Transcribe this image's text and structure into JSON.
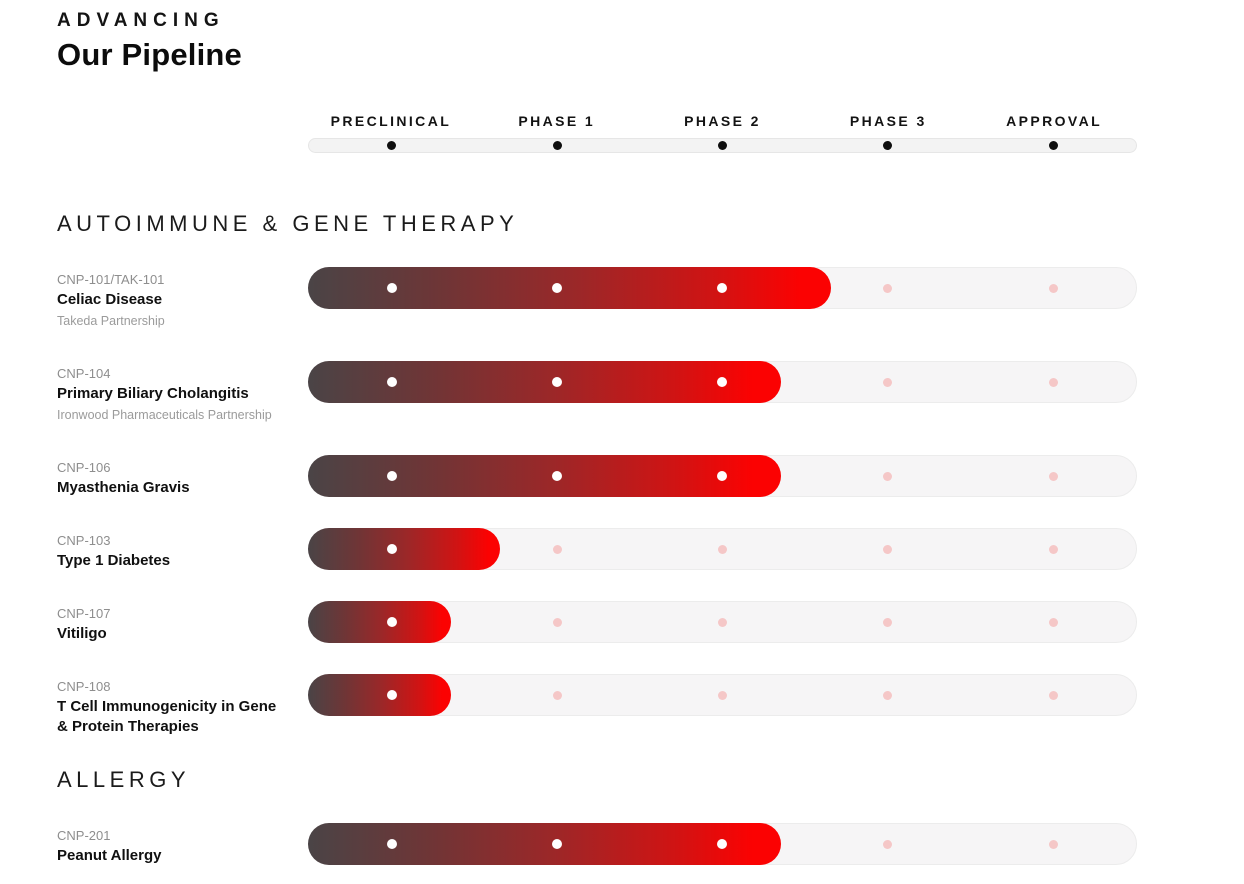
{
  "header": {
    "kicker": "ADVANCING",
    "title": "Our Pipeline"
  },
  "phases": [
    "PRECLINICAL",
    "PHASE 1",
    "PHASE 2",
    "PHASE 3",
    "APPROVAL"
  ],
  "colors": {
    "bar_gradient_start": "#4a4446",
    "bar_gradient_mid": "#9c2728",
    "bar_gradient_end": "#fb0202",
    "track_background": "#f6f5f6",
    "track_border": "#ececec",
    "axis_dot": "#0e0e0e",
    "reached_dot": "#ffffff",
    "pending_dot": "#f5c7c7"
  },
  "sections": [
    {
      "name": "AUTOIMMUNE & GENE THERAPY",
      "programs": [
        {
          "code": "CNP-101/TAK-101",
          "title": "Celiac Disease",
          "partner": "Takeda Partnership",
          "progress_pct": 63,
          "phases_reached": 3,
          "stage": "Phase 2"
        },
        {
          "code": "CNP-104",
          "title": "Primary Biliary Cholangitis",
          "partner": "Ironwood Pharmaceuticals Partnership",
          "progress_pct": 57,
          "phases_reached": 3,
          "stage": "Phase 2"
        },
        {
          "code": "CNP-106",
          "title": "Myasthenia Gravis",
          "partner": "",
          "progress_pct": 57,
          "phases_reached": 3,
          "stage": "Phase 2"
        },
        {
          "code": "CNP-103",
          "title": "Type 1 Diabetes",
          "partner": "",
          "progress_pct": 23,
          "phases_reached": 1,
          "stage": "Preclinical"
        },
        {
          "code": "CNP-107",
          "title": "Vitiligo",
          "partner": "",
          "progress_pct": 17,
          "phases_reached": 1,
          "stage": "Preclinical"
        },
        {
          "code": "CNP-108",
          "title": "T Cell Immunogenicity in Gene & Protein Therapies",
          "partner": "",
          "progress_pct": 17,
          "phases_reached": 1,
          "stage": "Preclinical"
        }
      ]
    },
    {
      "name": "ALLERGY",
      "programs": [
        {
          "code": "CNP-201",
          "title": "Peanut Allergy",
          "partner": "",
          "progress_pct": 57,
          "phases_reached": 3,
          "stage": "Phase 2"
        }
      ]
    }
  ],
  "chart_data": {
    "type": "bar",
    "title": "Advancing Our Pipeline",
    "x_axis_stages": [
      "Preclinical",
      "Phase 1",
      "Phase 2",
      "Phase 3",
      "Approval"
    ],
    "categories": [
      "CNP-101/TAK-101 Celiac Disease",
      "CNP-104 Primary Biliary Cholangitis",
      "CNP-106 Myasthenia Gravis",
      "CNP-103 Type 1 Diabetes",
      "CNP-107 Vitiligo",
      "CNP-108 T Cell Immunogenicity in Gene & Protein Therapies",
      "CNP-201 Peanut Allergy"
    ],
    "values_pct_of_track": [
      63,
      57,
      57,
      23,
      17,
      17,
      57
    ],
    "stages_reached": [
      "Phase 2",
      "Phase 2",
      "Phase 2",
      "Preclinical",
      "Preclinical",
      "Preclinical",
      "Phase 2"
    ],
    "groups": [
      "Autoimmune & Gene Therapy",
      "Autoimmune & Gene Therapy",
      "Autoimmune & Gene Therapy",
      "Autoimmune & Gene Therapy",
      "Autoimmune & Gene Therapy",
      "Autoimmune & Gene Therapy",
      "Allergy"
    ],
    "xlim": [
      0,
      100
    ],
    "legend": false,
    "grid": false
  }
}
